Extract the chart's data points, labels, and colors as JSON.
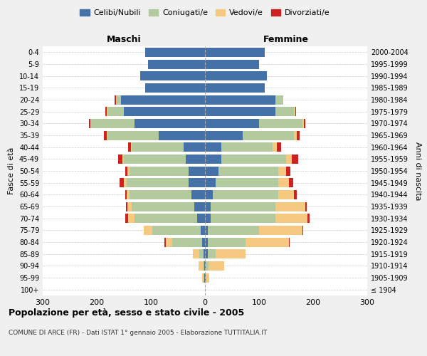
{
  "age_groups": [
    "100+",
    "95-99",
    "90-94",
    "85-89",
    "80-84",
    "75-79",
    "70-74",
    "65-69",
    "60-64",
    "55-59",
    "50-54",
    "45-49",
    "40-44",
    "35-39",
    "30-34",
    "25-29",
    "20-24",
    "15-19",
    "10-14",
    "5-9",
    "0-4"
  ],
  "birth_years": [
    "≤ 1904",
    "1905-1909",
    "1910-1914",
    "1915-1919",
    "1920-1924",
    "1925-1929",
    "1930-1934",
    "1935-1939",
    "1940-1944",
    "1945-1949",
    "1950-1954",
    "1955-1959",
    "1960-1964",
    "1965-1969",
    "1970-1974",
    "1975-1979",
    "1980-1984",
    "1985-1989",
    "1990-1994",
    "1995-1999",
    "2000-2004"
  ],
  "colors": {
    "celibi": "#4472a8",
    "coniugati": "#b3c99e",
    "vedovi": "#f5c97f",
    "divorziati": "#cc2222"
  },
  "maschi": {
    "celibi": [
      0,
      1,
      1,
      2,
      5,
      8,
      15,
      20,
      25,
      30,
      30,
      35,
      40,
      85,
      130,
      150,
      155,
      110,
      120,
      105,
      110
    ],
    "coniugati": [
      0,
      1,
      3,
      8,
      55,
      90,
      115,
      115,
      115,
      115,
      110,
      115,
      95,
      95,
      80,
      30,
      10,
      0,
      0,
      0,
      0
    ],
    "vedovi": [
      0,
      3,
      8,
      12,
      12,
      15,
      12,
      8,
      5,
      5,
      3,
      3,
      2,
      2,
      2,
      2,
      0,
      0,
      0,
      0,
      0
    ],
    "divorziati": [
      0,
      0,
      0,
      0,
      3,
      0,
      5,
      3,
      3,
      8,
      5,
      8,
      5,
      5,
      3,
      2,
      2,
      0,
      0,
      0,
      0
    ]
  },
  "femmine": {
    "celibi": [
      0,
      1,
      1,
      5,
      5,
      5,
      10,
      10,
      15,
      20,
      25,
      30,
      30,
      70,
      100,
      130,
      130,
      110,
      115,
      100,
      110
    ],
    "coniugati": [
      0,
      2,
      5,
      15,
      70,
      95,
      120,
      120,
      120,
      115,
      110,
      120,
      95,
      95,
      80,
      35,
      15,
      0,
      0,
      0,
      0
    ],
    "vedovi": [
      0,
      5,
      30,
      55,
      80,
      80,
      60,
      55,
      30,
      20,
      15,
      10,
      8,
      5,
      3,
      2,
      0,
      0,
      0,
      0,
      0
    ],
    "divorziati": [
      0,
      0,
      0,
      0,
      2,
      2,
      3,
      3,
      5,
      8,
      8,
      12,
      8,
      5,
      3,
      2,
      0,
      0,
      0,
      0,
      0
    ]
  },
  "title": "Popolazione per età, sesso e stato civile - 2005",
  "subtitle": "COMUNE DI ARCE (FR) - Dati ISTAT 1° gennaio 2005 - Elaborazione TUTTITALIA.IT",
  "xlabel_left": "Maschi",
  "xlabel_right": "Femmine",
  "ylabel_left": "Fasce di età",
  "ylabel_right": "Anni di nascita",
  "xlim": 300,
  "xticks": [
    -300,
    -200,
    -100,
    0,
    100,
    200,
    300
  ],
  "xticklabels": [
    "300",
    "200",
    "100",
    "0",
    "100",
    "200",
    "300"
  ],
  "bg_color": "#f0f0f0",
  "plot_bg": "#ffffff",
  "legend_labels": [
    "Celibi/Nubili",
    "Coniugati/e",
    "Vedovi/e",
    "Divorziati/e"
  ]
}
